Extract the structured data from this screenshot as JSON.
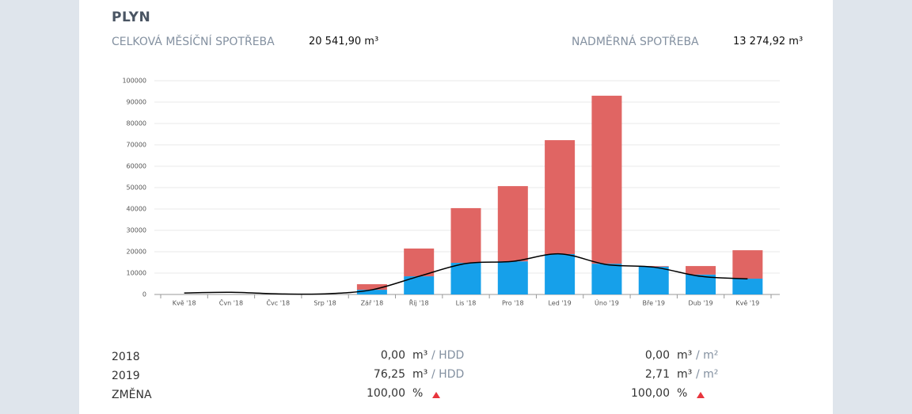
{
  "header": {
    "title": "PLYN"
  },
  "stats": [
    {
      "label": "CELKOVÁ MĚSÍČNÍ SPOTŘEBA",
      "value": "20 541,90 m³"
    },
    {
      "label": "NADMĚRNÁ SPOTŘEBA",
      "value": "13 274,92 m³"
    }
  ],
  "chart_data": {
    "type": "bar",
    "stacked": true,
    "categories": [
      "Kvě '18",
      "Čvn '18",
      "Čvc '18",
      "Srp '18",
      "Zář '18",
      "Říj '18",
      "Lis '18",
      "Pro '18",
      "Led '19",
      "Úno '19",
      "Bře '19",
      "Dub '19",
      "Kvě '19"
    ],
    "series": [
      {
        "color": "#16a0ea",
        "values": [
          0,
          0,
          0,
          0,
          2200,
          8500,
          14800,
          15500,
          18900,
          14400,
          13000,
          9300,
          7400
        ]
      },
      {
        "color": "#e06563",
        "values": [
          0,
          0,
          0,
          0,
          2600,
          13000,
          25600,
          35200,
          53300,
          78600,
          300,
          4000,
          13300
        ]
      },
      {
        "type": "line",
        "color": "#000000",
        "values": [
          700,
          1000,
          300,
          300,
          2200,
          8500,
          14500,
          15500,
          19000,
          14000,
          12800,
          8500,
          7300
        ]
      }
    ],
    "ylim": [
      0,
      100000
    ],
    "yticks": [
      0,
      10000,
      20000,
      30000,
      40000,
      50000,
      60000,
      70000,
      80000,
      90000,
      100000
    ],
    "grid": true
  },
  "comparison": {
    "rows": [
      {
        "label": "2018",
        "hdd": "0,00",
        "hdd_unit": "m³",
        "hdd_per": "/ HDD",
        "area": "0,00",
        "area_unit": "m³",
        "area_per": "/ m²"
      },
      {
        "label": "2019",
        "hdd": "76,25",
        "hdd_unit": "m³",
        "hdd_per": "/ HDD",
        "area": "2,71",
        "area_unit": "m³",
        "area_per": "/ m²"
      },
      {
        "label": "ZMĚNA",
        "hdd": "100,00",
        "hdd_unit": "%",
        "area": "100,00",
        "area_unit": "%"
      }
    ]
  }
}
